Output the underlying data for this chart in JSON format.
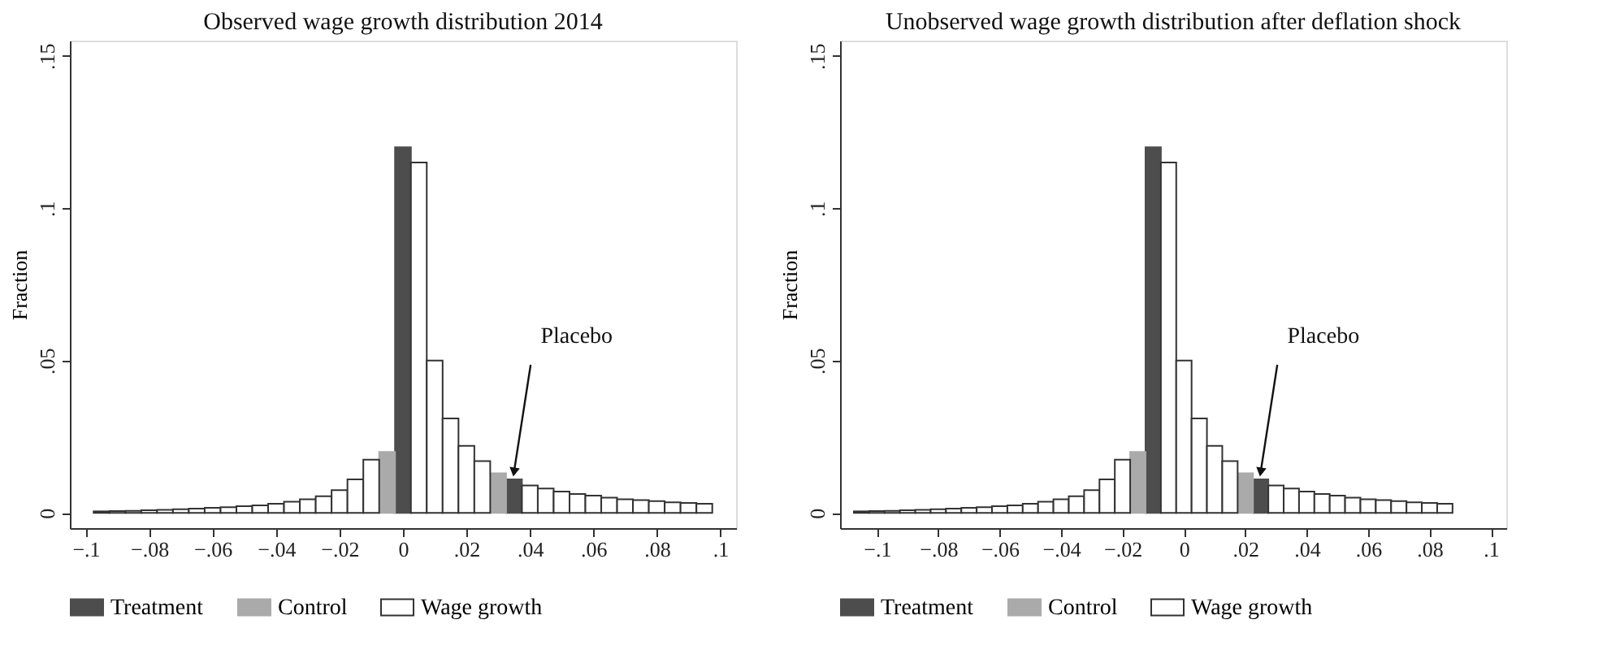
{
  "chart_data": [
    {
      "type": "histogram",
      "title": "Observed wage growth distribution 2014",
      "ylabel": "Fraction",
      "bins": [
        -0.0975,
        -0.0925,
        -0.0875,
        -0.0825,
        -0.0775,
        -0.0725,
        -0.0675,
        -0.0625,
        -0.0575,
        -0.0525,
        -0.0475,
        -0.0425,
        -0.0375,
        -0.0325,
        -0.0275,
        -0.0225,
        -0.0175,
        -0.0125,
        -0.0075,
        -0.0025,
        0.0025,
        0.0075,
        0.0125,
        0.0175,
        0.0225,
        0.0275,
        0.0325,
        0.0375,
        0.0425,
        0.0475,
        0.0525,
        0.0575,
        0.0625,
        0.0675,
        0.0725,
        0.0775,
        0.0825,
        0.0875,
        0.0925,
        0.0975
      ],
      "series": [
        {
          "name": "Treatment",
          "color": "#4d4d4d",
          "values": [
            null,
            null,
            null,
            null,
            null,
            null,
            null,
            null,
            null,
            null,
            null,
            null,
            null,
            null,
            null,
            null,
            null,
            null,
            null,
            0.12,
            null,
            null,
            null,
            null,
            null,
            null,
            0.011,
            null,
            null,
            null,
            null,
            null,
            null,
            null,
            null,
            null,
            null,
            null,
            null
          ]
        },
        {
          "name": "Control",
          "color": "#aaaaaa",
          "values": [
            null,
            null,
            null,
            null,
            null,
            null,
            null,
            null,
            null,
            null,
            null,
            null,
            null,
            null,
            null,
            null,
            null,
            null,
            0.02,
            null,
            null,
            null,
            null,
            null,
            null,
            0.013,
            null,
            null,
            null,
            null,
            null,
            null,
            null,
            null,
            null,
            null,
            null,
            null,
            null
          ]
        },
        {
          "name": "Wage growth",
          "color": "#ffffff",
          "values": [
            0.0005,
            0.0006,
            0.0007,
            0.0009,
            0.001,
            0.0012,
            0.0014,
            0.0017,
            0.0019,
            0.0022,
            0.0025,
            0.003,
            0.0037,
            0.0045,
            0.0055,
            0.0075,
            0.011,
            0.0175,
            null,
            null,
            0.115,
            0.05,
            0.031,
            0.022,
            0.017,
            null,
            null,
            0.009,
            0.008,
            0.007,
            0.0062,
            0.0057,
            0.005,
            0.0045,
            0.0042,
            0.0039,
            0.0035,
            0.0033,
            0.003
          ]
        }
      ],
      "xlim": [
        -0.105,
        0.105
      ],
      "xticks": [
        {
          "value": -0.1,
          "label": "−.1"
        },
        {
          "value": -0.08,
          "label": "−.08"
        },
        {
          "value": -0.06,
          "label": "−.06"
        },
        {
          "value": -0.04,
          "label": "−.04"
        },
        {
          "value": -0.02,
          "label": "−.02"
        },
        0,
        {
          "value": 0.02,
          "label": ".02"
        },
        {
          "value": 0.04,
          "label": ".04"
        },
        {
          "value": 0.06,
          "label": ".06"
        },
        {
          "value": 0.08,
          "label": ".08"
        },
        {
          "value": 0.1,
          "label": ".1"
        }
      ],
      "ylim": [
        -0.005,
        0.155
      ],
      "yticks": [
        {
          "value": 0,
          "label": "0"
        },
        {
          "value": 0.05,
          "label": ".05"
        },
        {
          "value": 0.1,
          "label": ".1"
        },
        {
          "value": 0.15,
          "label": ".15"
        }
      ],
      "annotations": [
        {
          "text": "Placebo",
          "x": 0.035,
          "y": 0.011
        }
      ],
      "grid": false,
      "legend": "bottom"
    },
    {
      "type": "histogram",
      "title": "Unobserved wage growth distribution after deflation shock",
      "ylabel": "Fraction",
      "bins": [
        -0.1075,
        -0.1025,
        -0.0975,
        -0.0925,
        -0.0875,
        -0.0825,
        -0.0775,
        -0.0725,
        -0.0675,
        -0.0625,
        -0.0575,
        -0.0525,
        -0.0475,
        -0.0425,
        -0.0375,
        -0.0325,
        -0.0275,
        -0.0225,
        -0.0175,
        -0.0125,
        -0.0075,
        -0.0025,
        0.0025,
        0.0075,
        0.0125,
        0.0175,
        0.0225,
        0.0275,
        0.0325,
        0.0375,
        0.0425,
        0.0475,
        0.0525,
        0.0575,
        0.0625,
        0.0675,
        0.0725,
        0.0775,
        0.0825,
        0.0875
      ],
      "series": [
        {
          "name": "Treatment",
          "color": "#4d4d4d",
          "values": [
            null,
            null,
            null,
            null,
            null,
            null,
            null,
            null,
            null,
            null,
            null,
            null,
            null,
            null,
            null,
            null,
            null,
            null,
            null,
            0.12,
            null,
            null,
            null,
            null,
            null,
            null,
            0.011,
            null,
            null,
            null,
            null,
            null,
            null,
            null,
            null,
            null,
            null,
            null,
            null
          ]
        },
        {
          "name": "Control",
          "color": "#aaaaaa",
          "values": [
            null,
            null,
            null,
            null,
            null,
            null,
            null,
            null,
            null,
            null,
            null,
            null,
            null,
            null,
            null,
            null,
            null,
            null,
            0.02,
            null,
            null,
            null,
            null,
            null,
            null,
            0.013,
            null,
            null,
            null,
            null,
            null,
            null,
            null,
            null,
            null,
            null,
            null,
            null,
            null
          ]
        },
        {
          "name": "Wage growth",
          "color": "#ffffff",
          "values": [
            0.0005,
            0.0006,
            0.0007,
            0.0009,
            0.001,
            0.0012,
            0.0014,
            0.0017,
            0.0019,
            0.0022,
            0.0025,
            0.003,
            0.0037,
            0.0045,
            0.0055,
            0.0075,
            0.011,
            0.0175,
            null,
            null,
            0.115,
            0.05,
            0.031,
            0.022,
            0.017,
            null,
            null,
            0.009,
            0.008,
            0.007,
            0.0062,
            0.0057,
            0.005,
            0.0045,
            0.0042,
            0.0039,
            0.0035,
            0.0033,
            0.003
          ]
        }
      ],
      "xlim": [
        -0.112,
        0.105
      ],
      "xticks": [
        {
          "value": -0.1,
          "label": "−.1"
        },
        {
          "value": -0.08,
          "label": "−.08"
        },
        {
          "value": -0.06,
          "label": "−.06"
        },
        {
          "value": -0.04,
          "label": "−.04"
        },
        {
          "value": -0.02,
          "label": "−.02"
        },
        0,
        {
          "value": 0.02,
          "label": ".02"
        },
        {
          "value": 0.04,
          "label": ".04"
        },
        {
          "value": 0.06,
          "label": ".06"
        },
        {
          "value": 0.08,
          "label": ".08"
        },
        {
          "value": 0.1,
          "label": ".1"
        }
      ],
      "ylim": [
        -0.005,
        0.155
      ],
      "yticks": [
        {
          "value": 0,
          "label": "0"
        },
        {
          "value": 0.05,
          "label": ".05"
        },
        {
          "value": 0.1,
          "label": ".1"
        },
        {
          "value": 0.15,
          "label": ".15"
        }
      ],
      "annotations": [
        {
          "text": "Placebo",
          "x": 0.025,
          "y": 0.011
        }
      ],
      "grid": false,
      "legend": "bottom"
    }
  ]
}
